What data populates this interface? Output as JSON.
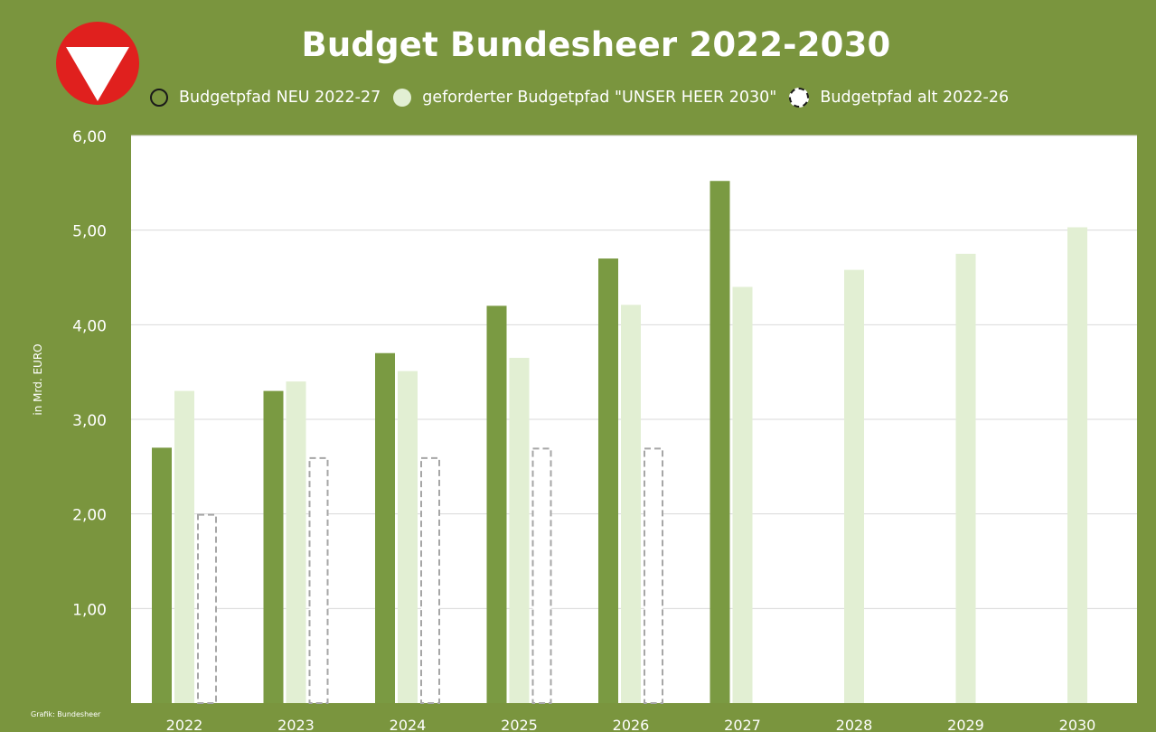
{
  "logo": {
    "icon": "austrian-armed-forces-emblem-icon",
    "colors": {
      "red": "#e0201e",
      "white": "#ffffff"
    }
  },
  "colors": {
    "background": "#7a953e",
    "plot_area": "#ffffff",
    "gridline": "#d9d9d9",
    "neu": "#7a9a42",
    "heer": "#e2efd3",
    "alt_border": "#a6a6a6"
  },
  "credit": "Grafik: Bundesheer",
  "chart_data": {
    "type": "bar",
    "title": "Budget Bundesheer 2022-2030",
    "ylabel": "in Mrd. EURO",
    "xlabel": "",
    "ylim": [
      0,
      6
    ],
    "yticks": [
      "6,00",
      "5,00",
      "4,00",
      "3,00",
      "2,00",
      "1,00"
    ],
    "grid": true,
    "legend_position": "top",
    "categories": [
      "2022",
      "2023",
      "2024",
      "2025",
      "2026",
      "2027",
      "2028",
      "2029",
      "2030"
    ],
    "series": [
      {
        "name": "Budgetpfad NEU 2022-27",
        "values": [
          2.7,
          3.3,
          3.7,
          4.2,
          4.7,
          5.52,
          null,
          null,
          null
        ]
      },
      {
        "name": "geforderter Budgetpfad \"UNSER HEER 2030\"",
        "values": [
          3.3,
          3.4,
          3.51,
          3.65,
          4.21,
          4.4,
          4.58,
          4.75,
          5.03
        ]
      },
      {
        "name": "Budgetpfad alt 2022-26",
        "values": [
          2.0,
          2.6,
          2.6,
          2.7,
          2.7,
          null,
          null,
          null,
          null
        ]
      }
    ]
  }
}
